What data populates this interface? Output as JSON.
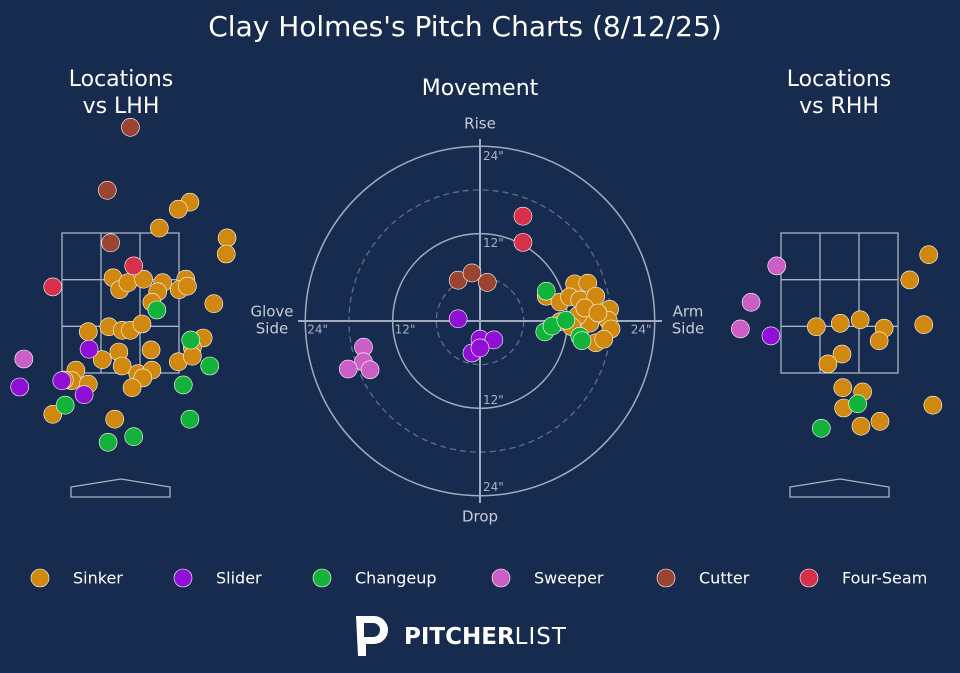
{
  "title": "Clay Holmes's Pitch Charts (8/12/25)",
  "chart_data": [
    {
      "type": "scatter",
      "title": [
        "Locations",
        "vs LHH"
      ],
      "xlim": [
        -1.3,
        1.3
      ],
      "ylim": [
        0,
        5.2
      ],
      "series": [
        {
          "name": "Sinker",
          "color": "#d0880e",
          "x": [
            0.84,
            0.7,
            0.47,
            1.29,
            1.28,
            -0.09,
            -0.01,
            0.09,
            0.28,
            0.51,
            0.79,
            0.71,
            0.81,
            0.45,
            0.38,
            1.13,
            -0.39,
            -0.14,
            0.02,
            0.12,
            0.26,
            1.0,
            0.87,
            0.37,
            -0.02,
            -0.22,
            -0.54,
            -0.59,
            -0.39,
            0.02,
            0.21,
            0.38,
            0.7,
            0.87,
            0.27,
            0.14,
            -0.07,
            -0.82,
            -0.68
          ],
          "y": [
            3.94,
            3.84,
            3.57,
            3.43,
            3.2,
            2.86,
            2.69,
            2.79,
            2.84,
            2.79,
            2.84,
            2.69,
            2.74,
            2.66,
            2.51,
            2.49,
            2.09,
            2.16,
            2.11,
            2.11,
            2.2,
            2.0,
            1.86,
            1.83,
            1.8,
            1.69,
            1.54,
            1.39,
            1.34,
            1.6,
            1.49,
            1.54,
            1.66,
            1.74,
            1.43,
            1.29,
            0.84,
            0.91,
            1.4
          ]
        },
        {
          "name": "Slider",
          "color": "#8f10d4",
          "x": [
            -0.38,
            -0.71,
            -0.44,
            -1.22
          ],
          "y": [
            1.84,
            1.39,
            1.19,
            1.3
          ]
        },
        {
          "name": "Changeup",
          "color": "#13b23b",
          "x": [
            0.44,
            0.85,
            1.08,
            0.76,
            0.84,
            0.16,
            -0.15,
            -0.67
          ],
          "y": [
            2.4,
            1.97,
            1.6,
            1.33,
            0.84,
            0.59,
            0.51,
            1.04
          ]
        },
        {
          "name": "Sweeper",
          "color": "#cc5fc6",
          "x": [
            -1.17
          ],
          "y": [
            1.7
          ]
        },
        {
          "name": "Cutter",
          "color": "#9b4431",
          "x": [
            0.12,
            -0.16,
            -0.12
          ],
          "y": [
            5.01,
            4.11,
            3.36
          ]
        },
        {
          "name": "Four-Seam",
          "color": "#d6304b",
          "x": [
            -0.82,
            0.16
          ],
          "y": [
            2.73,
            3.03
          ]
        }
      ]
    },
    {
      "type": "polar-scatter",
      "title": "Movement",
      "rlim": [
        0,
        25
      ],
      "rticks": [
        {
          "value": 12,
          "label": "12\""
        },
        {
          "value": 24,
          "label": "24\""
        }
      ],
      "rminor": [
        6,
        18
      ],
      "labels": {
        "top": "Rise",
        "bottom": "Drop",
        "left": [
          "Glove",
          "Side"
        ],
        "right": [
          "Arm",
          "Side"
        ]
      },
      "series": [
        {
          "name": "Sinker",
          "color": "#d0880e",
          "x": [
            13.0,
            14.8,
            9.1,
            11.0,
            12.3,
            13.7,
            15.9,
            17.8,
            17.6,
            18.0,
            15.9,
            17.0,
            15.1,
            13.4,
            12.6,
            14.4,
            16.2,
            11.0
          ],
          "y": [
            5.1,
            5.2,
            3.4,
            2.6,
            3.3,
            2.9,
            3.4,
            1.6,
            0.1,
            -1.1,
            -3.0,
            -2.5,
            -0.3,
            0.7,
            -0.8,
            1.8,
            1.1,
            -0.1
          ]
        },
        {
          "name": "Slider",
          "color": "#8f10d4",
          "x": [
            -3.0,
            0,
            1.9,
            -1.1,
            0
          ],
          "y": [
            0.3,
            -2.5,
            -2.6,
            -4.4,
            -3.7
          ]
        },
        {
          "name": "Changeup",
          "color": "#13b23b",
          "x": [
            9.1,
            8.9,
            9.9,
            11.8,
            13.7,
            14.0
          ],
          "y": [
            4.1,
            -1.5,
            -0.7,
            0.1,
            -2.1,
            -2.7
          ]
        },
        {
          "name": "Sweeper",
          "color": "#cc5fc6",
          "x": [
            -16.0,
            -16.0,
            -18.1,
            -15.1
          ],
          "y": [
            -3.6,
            -5.6,
            -6.6,
            -6.7
          ]
        },
        {
          "name": "Cutter",
          "color": "#9b4431",
          "x": [
            -3.0,
            -1.1,
            1.0
          ],
          "y": [
            5.6,
            6.6,
            5.3
          ]
        },
        {
          "name": "Four-Seam",
          "color": "#d6304b",
          "x": [
            5.9,
            5.9
          ],
          "y": [
            14.4,
            10.8
          ]
        }
      ]
    },
    {
      "type": "scatter",
      "title": [
        "Locations",
        "vs RHH"
      ],
      "xlim": [
        -1.3,
        1.3
      ],
      "ylim": [
        0,
        5.2
      ],
      "series": [
        {
          "name": "Sinker",
          "color": "#d0880e",
          "x": [
            1.08,
            0.85,
            1.02,
            -0.28,
            0.01,
            0.25,
            0.54,
            0.48,
            0.03,
            -0.14,
            0.04,
            0.28,
            0.05,
            1.13,
            0.49,
            0.26
          ],
          "y": [
            3.19,
            2.83,
            2.19,
            2.16,
            2.21,
            2.26,
            2.14,
            1.96,
            1.77,
            1.63,
            1.29,
            1.23,
            1.0,
            1.04,
            0.81,
            0.74
          ]
        },
        {
          "name": "Slider",
          "color": "#8f10d4",
          "x": [
            -0.83
          ],
          "y": [
            2.03
          ]
        },
        {
          "name": "Changeup",
          "color": "#13b23b",
          "x": [
            0.22,
            -0.22
          ],
          "y": [
            1.06,
            0.71
          ]
        },
        {
          "name": "Sweeper",
          "color": "#cc5fc6",
          "x": [
            -0.76,
            -1.07,
            -1.2
          ],
          "y": [
            3.03,
            2.51,
            2.13
          ]
        }
      ]
    }
  ],
  "logo": {
    "bold": "PITCHER",
    "light": "LIST"
  }
}
